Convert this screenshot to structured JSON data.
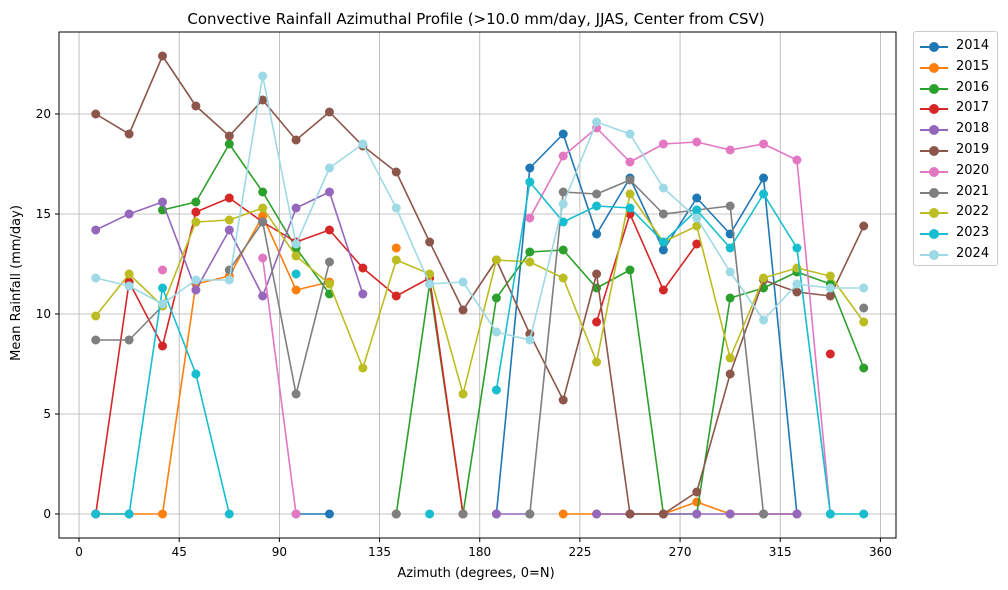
{
  "chart_data": {
    "type": "line",
    "title": "Convective Rainfall Azimuthal Profile (>10.0 mm/day, JJAS, Center from CSV)",
    "xlabel": "Azimuth (degrees, 0=N)",
    "ylabel": "Mean Rainfall (mm/day)",
    "xlim": [
      -9,
      367
    ],
    "ylim": [
      -1.2,
      24.1
    ],
    "xticks": [
      0,
      45,
      90,
      135,
      180,
      225,
      270,
      315,
      360
    ],
    "yticks": [
      0,
      5,
      10,
      15,
      20
    ],
    "grid": true,
    "legend_position": "outside-top-right",
    "x": [
      7.5,
      22.5,
      37.5,
      52.5,
      67.5,
      82.5,
      97.5,
      112.5,
      127.5,
      142.5,
      157.5,
      172.5,
      187.5,
      202.5,
      217.5,
      232.5,
      247.5,
      262.5,
      277.5,
      292.5,
      307.5,
      322.5,
      337.5,
      352.5
    ],
    "series": [
      {
        "name": "2014",
        "color": "#1f77b4",
        "values": [
          null,
          null,
          null,
          null,
          null,
          null,
          0,
          0,
          null,
          null,
          null,
          null,
          0,
          17.3,
          19.0,
          14.0,
          16.8,
          13.2,
          15.8,
          14.0,
          16.8,
          0,
          null,
          null
        ]
      },
      {
        "name": "2015",
        "color": "#ff7f0e",
        "values": [
          0,
          0,
          0,
          11.5,
          11.9,
          14.9,
          11.2,
          11.6,
          null,
          13.3,
          null,
          null,
          null,
          null,
          0,
          0,
          0,
          0,
          0.6,
          0,
          0,
          0,
          null,
          null
        ]
      },
      {
        "name": "2016",
        "color": "#2ca02c",
        "values": [
          null,
          null,
          15.2,
          15.6,
          18.5,
          16.1,
          13.3,
          11.0,
          null,
          0,
          11.5,
          0,
          10.8,
          13.1,
          13.2,
          11.3,
          12.2,
          0,
          0,
          10.8,
          11.3,
          12.1,
          11.5,
          7.3
        ]
      },
      {
        "name": "2017",
        "color": "#d62728",
        "values": [
          0,
          11.6,
          8.4,
          15.1,
          15.8,
          14.6,
          13.6,
          14.2,
          12.3,
          10.9,
          11.8,
          0,
          null,
          null,
          null,
          9.6,
          15.0,
          11.2,
          13.5,
          null,
          null,
          null,
          8.0,
          null
        ]
      },
      {
        "name": "2018",
        "color": "#9467bd",
        "values": [
          14.2,
          15.0,
          15.6,
          11.2,
          14.2,
          10.9,
          15.3,
          16.1,
          11.0,
          null,
          null,
          null,
          0,
          0,
          null,
          0,
          0,
          0,
          0,
          0,
          0,
          0,
          null,
          null
        ]
      },
      {
        "name": "2019",
        "color": "#8c564b",
        "values": [
          20.0,
          19.0,
          22.9,
          20.4,
          18.9,
          20.7,
          18.7,
          20.1,
          18.4,
          17.1,
          13.6,
          10.2,
          12.7,
          9.0,
          5.7,
          12.0,
          0,
          0,
          1.1,
          7.0,
          11.7,
          11.1,
          10.9,
          14.4
        ]
      },
      {
        "name": "2020",
        "color": "#e377c2",
        "values": [
          0,
          null,
          12.2,
          null,
          null,
          12.8,
          0,
          null,
          null,
          null,
          null,
          null,
          null,
          14.8,
          17.9,
          19.3,
          17.6,
          18.5,
          18.6,
          18.2,
          18.5,
          17.7,
          0,
          null
        ]
      },
      {
        "name": "2021",
        "color": "#7f7f7f",
        "values": [
          8.7,
          8.7,
          10.4,
          null,
          12.2,
          14.6,
          6.0,
          12.6,
          null,
          0,
          null,
          0,
          null,
          0,
          16.1,
          16.0,
          16.7,
          15.0,
          15.2,
          15.4,
          0,
          null,
          null,
          10.3
        ]
      },
      {
        "name": "2022",
        "color": "#bcbd22",
        "values": [
          9.9,
          12.0,
          10.4,
          14.6,
          14.7,
          15.3,
          12.9,
          11.5,
          7.3,
          12.7,
          12.0,
          6.0,
          12.7,
          12.6,
          11.8,
          7.6,
          16.0,
          13.6,
          14.4,
          7.8,
          11.8,
          12.3,
          11.9,
          9.6
        ]
      },
      {
        "name": "2023",
        "color": "#17becf",
        "values": [
          0,
          0,
          11.3,
          7.0,
          0,
          null,
          12.0,
          null,
          null,
          null,
          0,
          null,
          6.2,
          16.6,
          14.6,
          15.4,
          15.3,
          13.6,
          15.2,
          13.3,
          16.0,
          13.3,
          0,
          0
        ]
      },
      {
        "name": "2024",
        "color": "#9edae5",
        "values": [
          11.8,
          11.4,
          10.5,
          11.7,
          11.7,
          21.9,
          13.5,
          17.3,
          18.5,
          15.3,
          11.5,
          11.6,
          9.1,
          8.7,
          15.5,
          19.6,
          19.0,
          16.3,
          14.8,
          12.1,
          9.7,
          11.5,
          11.3,
          11.3
        ]
      }
    ]
  }
}
